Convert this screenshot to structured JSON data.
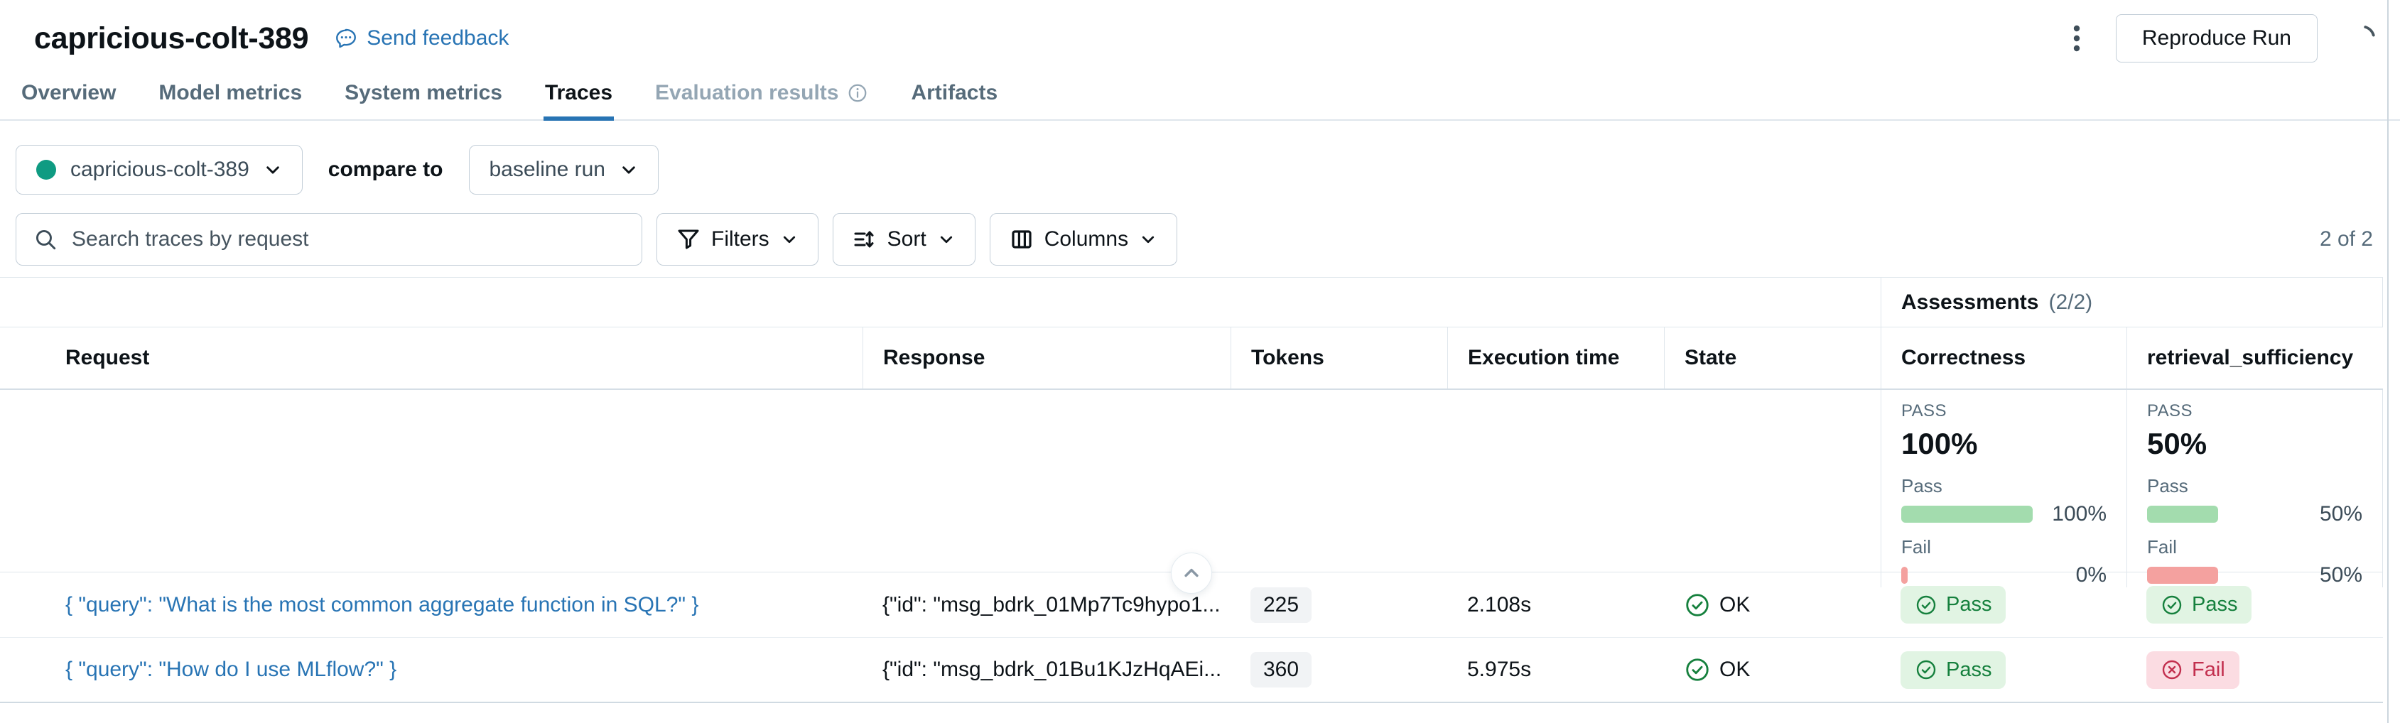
{
  "header": {
    "title": "capricious-colt-389",
    "feedback_label": "Send feedback",
    "reproduce_button": "Reproduce Run"
  },
  "tabs": [
    {
      "label": "Overview",
      "state": "normal"
    },
    {
      "label": "Model metrics",
      "state": "normal"
    },
    {
      "label": "System metrics",
      "state": "normal"
    },
    {
      "label": "Traces",
      "state": "active"
    },
    {
      "label": "Evaluation results",
      "state": "disabled",
      "has_info_icon": true
    },
    {
      "label": "Artifacts",
      "state": "normal"
    }
  ],
  "controls": {
    "run_selector": {
      "label": "capricious-colt-389",
      "dot_color": "#0f9b82"
    },
    "compare_to_label": "compare to",
    "baseline_selector": {
      "label": "baseline run"
    },
    "search_placeholder": "Search traces by request",
    "filters_label": "Filters",
    "sort_label": "Sort",
    "columns_label": "Columns",
    "count_label": "2 of 2"
  },
  "table": {
    "group_header": {
      "title": "Assessments",
      "count": "(2/2)"
    },
    "columns": [
      "Request",
      "Response",
      "Tokens",
      "Execution time",
      "State",
      "Correctness",
      "retrieval_sufficiency"
    ],
    "summary": {
      "correctness": {
        "overall_label": "PASS",
        "overall_value": "100%",
        "pass_label": "Pass",
        "pass_pct": 100,
        "pass_value": "100%",
        "fail_label": "Fail",
        "fail_pct": 0,
        "fail_value": "0%"
      },
      "retrieval_sufficiency": {
        "overall_label": "PASS",
        "overall_value": "50%",
        "pass_label": "Pass",
        "pass_pct": 50,
        "pass_value": "50%",
        "fail_label": "Fail",
        "fail_pct": 50,
        "fail_value": "50%"
      }
    },
    "rows": [
      {
        "request": "{ \"query\": \"What is the most common aggregate function in SQL?\" }",
        "response": "{\"id\": \"msg_bdrk_01Mp7Tc9hypo1...",
        "tokens": "225",
        "execution_time": "2.108s",
        "state": "OK",
        "correctness": "Pass",
        "retrieval_sufficiency": "Pass"
      },
      {
        "request": "{ \"query\": \"How do I use MLflow?\" }",
        "response": "{\"id\": \"msg_bdrk_01Bu1KJzHqAEi...",
        "tokens": "360",
        "execution_time": "5.975s",
        "state": "OK",
        "correctness": "Pass",
        "retrieval_sufficiency": "Fail"
      }
    ]
  },
  "icons": {
    "feedback": "speech-bubble",
    "evaluation_info": "info-circle",
    "selector_caret": "chevron-down",
    "search": "magnifier",
    "filters": "funnel",
    "sort": "sort-arrows",
    "columns": "column-grid",
    "overflow_menu": "kebab-vertical-dots",
    "loading": "spinner-arc",
    "collapse_summary": "chevron-up-circle",
    "state_ok": "check-circle",
    "pass_badge": "check-circle",
    "fail_badge": "x-circle"
  },
  "colors": {
    "accent_blue": "#2874b4",
    "run_dot_teal": "#0f9b82",
    "pass_green": "#15803d",
    "pass_pill_bg": "#e1f4e3",
    "fail_red": "#c22f4e",
    "fail_pill_bg": "#fbdce2",
    "bar_green": "#a3dcae",
    "bar_red": "#f4a19f",
    "border_gray": "#dfe6ec",
    "text_secondary": "#566b7a"
  }
}
